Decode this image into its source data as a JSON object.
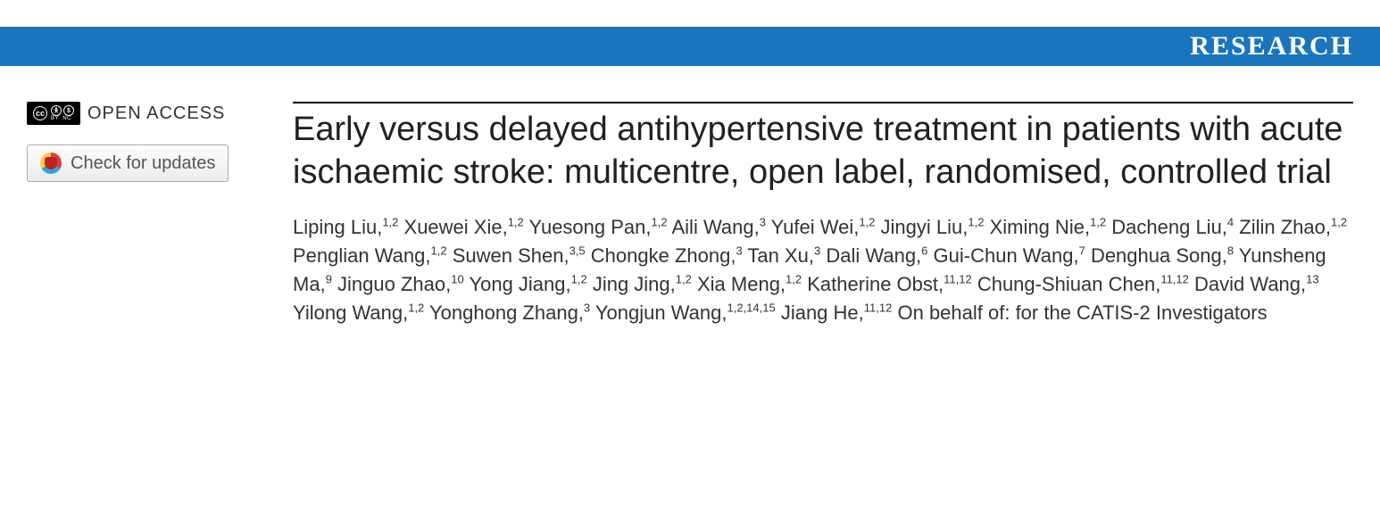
{
  "banner": {
    "label": "RESEARCH",
    "background_color": "#1a75bc",
    "text_color": "#ffffff",
    "font_family": "Georgia, serif",
    "font_size_pt": 22,
    "font_weight": "bold"
  },
  "sidebar": {
    "open_access_label": "OPEN ACCESS",
    "cc_badge": {
      "icons": [
        "CC",
        "BY",
        "NC"
      ],
      "bg": "#000000",
      "fg": "#ffffff"
    },
    "updates_button_label": "Check for updates",
    "updates_button": {
      "border_color": "#aaaaaa",
      "bg_gradient_top": "#fdfdfd",
      "bg_gradient_bottom": "#ececec",
      "text_color": "#555555",
      "icon_colors": [
        "#e23b3b",
        "#2ca7d8",
        "#f7c948"
      ]
    }
  },
  "article": {
    "title": "Early versus delayed antihypertensive treatment in patients with acute ischaemic stroke: multicentre, open label, randomised, controlled trial",
    "title_style": {
      "font_size_pt": 28,
      "color": "#212121",
      "font_weight": 500,
      "rule_color": "#000000"
    },
    "authors_style": {
      "font_size_pt": 16,
      "color": "#333333",
      "sup_font_size_pt": 10
    },
    "authors": [
      {
        "name": "Liping Liu",
        "affil": "1,2"
      },
      {
        "name": "Xuewei Xie",
        "affil": "1,2"
      },
      {
        "name": "Yuesong Pan",
        "affil": "1,2"
      },
      {
        "name": "Aili Wang",
        "affil": "3"
      },
      {
        "name": "Yufei Wei",
        "affil": "1,2"
      },
      {
        "name": "Jingyi Liu",
        "affil": "1,2"
      },
      {
        "name": "Ximing Nie",
        "affil": "1,2"
      },
      {
        "name": "Dacheng Liu",
        "affil": "4"
      },
      {
        "name": "Zilin Zhao",
        "affil": "1,2"
      },
      {
        "name": "Penglian Wang",
        "affil": "1,2"
      },
      {
        "name": "Suwen Shen",
        "affil": "3,5"
      },
      {
        "name": "Chongke Zhong",
        "affil": "3"
      },
      {
        "name": "Tan Xu",
        "affil": "3"
      },
      {
        "name": "Dali Wang",
        "affil": "6"
      },
      {
        "name": "Gui-Chun Wang",
        "affil": "7"
      },
      {
        "name": "Denghua Song",
        "affil": "8"
      },
      {
        "name": "Yunsheng Ma",
        "affil": "9"
      },
      {
        "name": "Jinguo Zhao",
        "affil": "10"
      },
      {
        "name": "Yong Jiang",
        "affil": "1,2"
      },
      {
        "name": "Jing Jing",
        "affil": "1,2"
      },
      {
        "name": "Xia Meng",
        "affil": "1,2"
      },
      {
        "name": "Katherine Obst",
        "affil": "11,12"
      },
      {
        "name": "Chung-Shiuan Chen",
        "affil": "11,12"
      },
      {
        "name": "David Wang",
        "affil": "13"
      },
      {
        "name": "Yilong Wang",
        "affil": "1,2"
      },
      {
        "name": "Yonghong Zhang",
        "affil": "3"
      },
      {
        "name": "Yongjun Wang",
        "affil": "1,2,14,15"
      },
      {
        "name": "Jiang He",
        "affil": "11,12"
      }
    ],
    "authors_suffix": "On behalf of: for the CATIS-2 Investigators"
  }
}
